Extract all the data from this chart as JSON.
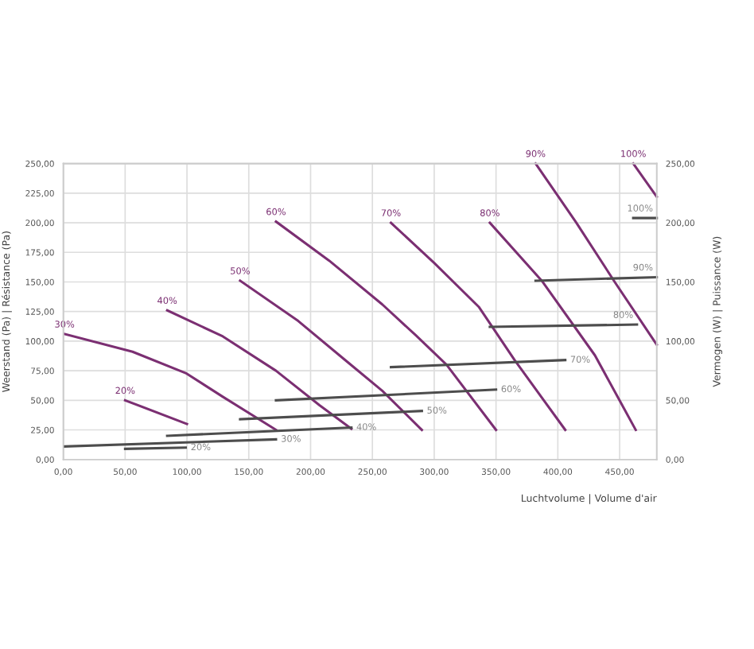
{
  "chart_data": {
    "type": "line",
    "xlabel": "Luchtvolume | Volume d'air",
    "ylabel": "Weerstand (Pa) | Résistance (Pa)",
    "y2label": "Vermogen (W) | Puissance (W)",
    "xlim": [
      0,
      480
    ],
    "ylim": [
      0,
      250
    ],
    "y2lim": [
      0,
      250
    ],
    "xticks": [
      {
        "value": 0,
        "label": "0,00"
      },
      {
        "value": 50,
        "label": "50,00"
      },
      {
        "value": 100,
        "label": "100,00"
      },
      {
        "value": 150,
        "label": "150,00"
      },
      {
        "value": 200,
        "label": "200,00"
      },
      {
        "value": 250,
        "label": "250,00"
      },
      {
        "value": 300,
        "label": "300,00"
      },
      {
        "value": 350,
        "label": "350,00"
      },
      {
        "value": 400,
        "label": "400,00"
      },
      {
        "value": 450,
        "label": "450,00"
      }
    ],
    "yticks": [
      {
        "value": 0,
        "label": "0,00"
      },
      {
        "value": 25,
        "label": "25,00"
      },
      {
        "value": 50,
        "label": "50,00"
      },
      {
        "value": 75,
        "label": "75,00"
      },
      {
        "value": 100,
        "label": "100,00"
      },
      {
        "value": 125,
        "label": "125,00"
      },
      {
        "value": 150,
        "label": "150,00"
      },
      {
        "value": 175,
        "label": "175,00"
      },
      {
        "value": 200,
        "label": "200,00"
      },
      {
        "value": 225,
        "label": "225,00"
      },
      {
        "value": 250,
        "label": "250,00"
      }
    ],
    "y2ticks": [
      {
        "value": 0,
        "label": "0,00"
      },
      {
        "value": 50,
        "label": "50,00"
      },
      {
        "value": 100,
        "label": "100,00"
      },
      {
        "value": 150,
        "label": "150,00"
      },
      {
        "value": 200,
        "label": "200,00"
      },
      {
        "value": 250,
        "label": "250,00"
      }
    ],
    "grid": true,
    "legend": false,
    "marker": "none",
    "line_style": "solid",
    "series": [
      {
        "name": "20%",
        "color": "#7b2f72",
        "x": [
          50,
          100
        ],
        "values": [
          50,
          30
        ]
      },
      {
        "name": "30%",
        "color": "#7b2f72",
        "x": [
          1,
          56,
          99,
          129,
          172
        ],
        "values": [
          106,
          91,
          73,
          53,
          25
        ]
      },
      {
        "name": "40%",
        "color": "#7b2f72",
        "x": [
          84,
          129,
          172,
          207,
          233
        ],
        "values": [
          126,
          104,
          75,
          46,
          26
        ]
      },
      {
        "name": "50%",
        "color": "#7b2f72",
        "x": [
          143,
          190,
          228,
          258,
          290
        ],
        "values": [
          151,
          117,
          84,
          58,
          25
        ]
      },
      {
        "name": "60%",
        "color": "#7b2f72",
        "x": [
          172,
          215,
          258,
          285,
          310,
          350
        ],
        "values": [
          201,
          168,
          131,
          105,
          80,
          25
        ]
      },
      {
        "name": "70%",
        "color": "#7b2f72",
        "x": [
          265,
          300,
          336,
          365,
          406
        ],
        "values": [
          200,
          166,
          129,
          84,
          25
        ]
      },
      {
        "name": "80%",
        "color": "#7b2f72",
        "x": [
          345,
          387,
          430,
          463
        ],
        "values": [
          200,
          151,
          88,
          25
        ]
      },
      {
        "name": "90%",
        "color": "#7b2f72",
        "x": [
          382,
          415,
          446,
          480
        ],
        "values": [
          250,
          200,
          150,
          97
        ]
      },
      {
        "name": "100%",
        "color": "#7b2f72",
        "x": [
          461,
          480
        ],
        "values": [
          250,
          222
        ]
      },
      {
        "name": "20%",
        "color": "#4d4d4d",
        "axis": "y2",
        "x": [
          50,
          99
        ],
        "values": [
          9,
          10
        ]
      },
      {
        "name": "30%",
        "color": "#4d4d4d",
        "axis": "y2",
        "x": [
          1,
          172
        ],
        "values": [
          11,
          17
        ]
      },
      {
        "name": "40%",
        "color": "#4d4d4d",
        "axis": "y2",
        "x": [
          84,
          233
        ],
        "values": [
          20,
          27
        ]
      },
      {
        "name": "50%",
        "color": "#4d4d4d",
        "axis": "y2",
        "x": [
          143,
          290
        ],
        "values": [
          34,
          41
        ]
      },
      {
        "name": "60%",
        "color": "#4d4d4d",
        "axis": "y2",
        "x": [
          172,
          350
        ],
        "values": [
          50,
          59
        ]
      },
      {
        "name": "70%",
        "color": "#4d4d4d",
        "axis": "y2",
        "x": [
          265,
          406
        ],
        "values": [
          78,
          84
        ]
      },
      {
        "name": "80%",
        "color": "#4d4d4d",
        "axis": "y2",
        "x": [
          345,
          464
        ],
        "values": [
          112,
          114
        ]
      },
      {
        "name": "90%",
        "color": "#4d4d4d",
        "axis": "y2",
        "x": [
          382,
          480
        ],
        "values": [
          151,
          154
        ]
      },
      {
        "name": "100%",
        "color": "#4d4d4d",
        "axis": "y2",
        "x": [
          461,
          480
        ],
        "values": [
          204,
          204
        ]
      }
    ]
  }
}
